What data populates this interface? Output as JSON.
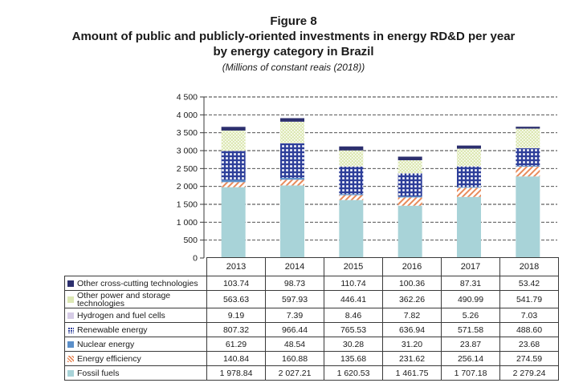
{
  "figure_label": "Figure 8",
  "title_line1": "Amount of public and publicly-oriented investments in energy RD&D per year",
  "title_line2": "by energy category in Brazil",
  "subtitle": "(Millions of constant reais (2018))",
  "chart_data": {
    "type": "bar",
    "stacked": true,
    "categories": [
      "2013",
      "2014",
      "2015",
      "2016",
      "2017",
      "2018"
    ],
    "ylim": [
      0,
      4500
    ],
    "yticks": [
      0,
      500,
      1000,
      1500,
      2000,
      2500,
      3000,
      3500,
      4000,
      4500
    ],
    "ytick_labels": [
      "0",
      "500",
      "1 000",
      "1 500",
      "2 000",
      "2 500",
      "3 000",
      "3 500",
      "4 000",
      "4 500"
    ],
    "grid": "horizontal dashed",
    "series": [
      {
        "name": "Fossil fuels",
        "color": "#a8d3d8",
        "pattern": "solid",
        "values": [
          1978.84,
          2027.21,
          1620.53,
          1461.75,
          1707.18,
          2279.24
        ],
        "labels": [
          "1 978.84",
          "2 027.21",
          "1 620.53",
          "1 461.75",
          "1 707.18",
          "2 279.24"
        ]
      },
      {
        "name": "Energy efficiency",
        "color": "#e88a5a",
        "pattern": "diagonal",
        "values": [
          140.84,
          160.88,
          135.68,
          231.62,
          256.14,
          274.59
        ],
        "labels": [
          "140.84",
          "160.88",
          "135.68",
          "231.62",
          "256.14",
          "274.59"
        ]
      },
      {
        "name": "Nuclear energy",
        "color": "#5b8fc9",
        "pattern": "solid",
        "values": [
          61.29,
          48.54,
          30.28,
          31.2,
          23.87,
          23.68
        ],
        "labels": [
          "61.29",
          "48.54",
          "30.28",
          "31.20",
          "23.87",
          "23.68"
        ]
      },
      {
        "name": "Renewable energy",
        "color": "#2e3f9a",
        "pattern": "grid",
        "values": [
          807.32,
          966.44,
          765.53,
          636.94,
          571.58,
          488.6
        ],
        "labels": [
          "807.32",
          "966.44",
          "765.53",
          "636.94",
          "571.58",
          "488.60"
        ]
      },
      {
        "name": "Hydrogen and fuel cells",
        "color": "#d6cce6",
        "pattern": "solid",
        "values": [
          9.19,
          7.39,
          8.46,
          7.82,
          5.26,
          7.03
        ],
        "labels": [
          "9.19",
          "7.39",
          "8.46",
          "7.82",
          "5.26",
          "7.03"
        ]
      },
      {
        "name": "Other power and storage technologies",
        "color": "#d8e4ae",
        "pattern": "dots",
        "values": [
          563.63,
          597.93,
          446.41,
          362.26,
          490.99,
          541.79
        ],
        "labels": [
          "563.63",
          "597.93",
          "446.41",
          "362.26",
          "490.99",
          "541.79"
        ]
      },
      {
        "name": "Other cross-cutting technologies",
        "color": "#2c2f6e",
        "pattern": "solid",
        "values": [
          103.74,
          98.73,
          110.74,
          100.36,
          87.31,
          53.42
        ],
        "labels": [
          "103.74",
          "98.73",
          "110.74",
          "100.36",
          "87.31",
          "53.42"
        ]
      }
    ]
  }
}
